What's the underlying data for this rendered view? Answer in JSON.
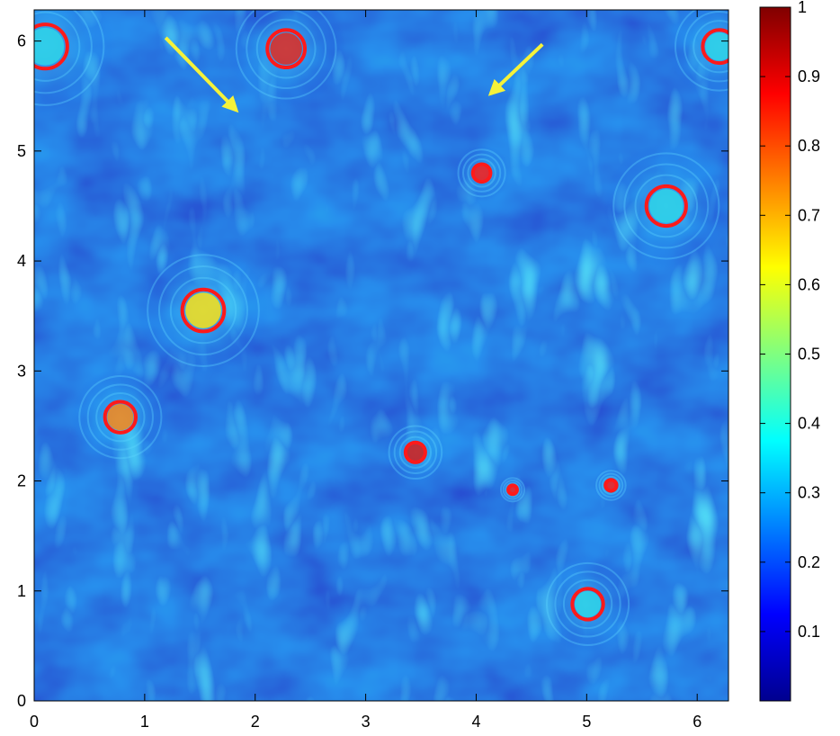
{
  "chart_data": [
    {
      "type": "heatmap",
      "title": "",
      "xlabel": "",
      "ylabel": "",
      "xlim": [
        0,
        6.2832
      ],
      "ylim": [
        0,
        6.2832
      ],
      "x_ticks": [
        "0",
        "1",
        "2",
        "3",
        "4",
        "5",
        "6"
      ],
      "y_ticks": [
        "0",
        "1",
        "2",
        "3",
        "4",
        "5",
        "6"
      ],
      "x_tick_values": [
        0,
        1,
        2,
        3,
        4,
        5,
        6
      ],
      "y_tick_values": [
        0,
        1,
        2,
        3,
        4,
        5,
        6
      ],
      "grid": false,
      "colormap": "jet",
      "background_color": "#0a2fd8",
      "vortex_cores": [
        {
          "x": 0.1,
          "y": 5.95,
          "r": 0.2,
          "core_color": "#2fd0e8"
        },
        {
          "x": 2.28,
          "y": 5.93,
          "r": 0.17,
          "core_color": "#d8302a"
        },
        {
          "x": 6.2,
          "y": 5.95,
          "r": 0.15,
          "core_color": "#2fd0e8"
        },
        {
          "x": 4.05,
          "y": 4.8,
          "r": 0.08,
          "core_color": "#ee2222"
        },
        {
          "x": 5.72,
          "y": 4.5,
          "r": 0.18,
          "core_color": "#2fd0e8"
        },
        {
          "x": 1.53,
          "y": 3.55,
          "r": 0.19,
          "core_color": "#eedd22"
        },
        {
          "x": 0.78,
          "y": 2.58,
          "r": 0.14,
          "core_color": "#ee8822"
        },
        {
          "x": 3.45,
          "y": 2.26,
          "r": 0.09,
          "core_color": "#cc2222"
        },
        {
          "x": 4.33,
          "y": 1.92,
          "r": 0.04,
          "core_color": "#ee2222"
        },
        {
          "x": 5.22,
          "y": 1.96,
          "r": 0.05,
          "core_color": "#ee2222"
        },
        {
          "x": 5.01,
          "y": 0.88,
          "r": 0.14,
          "core_color": "#2fd0e8"
        }
      ],
      "vortex_contour_color": "#ff1a1a",
      "arrows": [
        {
          "x1": 1.19,
          "y1": 6.03,
          "x2": 1.83,
          "y2": 5.37
        },
        {
          "x1": 4.6,
          "y1": 5.97,
          "x2": 4.13,
          "y2": 5.52
        }
      ],
      "arrow_color": "#f5f23a"
    },
    {
      "type": "colorbar",
      "colormap": "jet",
      "range": [
        0,
        1
      ],
      "ticks": [
        "0.1",
        "0.2",
        "0.3",
        "0.4",
        "0.5",
        "0.6",
        "0.7",
        "0.8",
        "0.9",
        "1"
      ],
      "tick_values": [
        0.1,
        0.2,
        0.3,
        0.4,
        0.5,
        0.6,
        0.7,
        0.8,
        0.9,
        1.0
      ],
      "jet_stops": [
        "#00008f",
        "#0000ff",
        "#00ffff",
        "#ffff00",
        "#ff0000",
        "#800000"
      ]
    }
  ]
}
